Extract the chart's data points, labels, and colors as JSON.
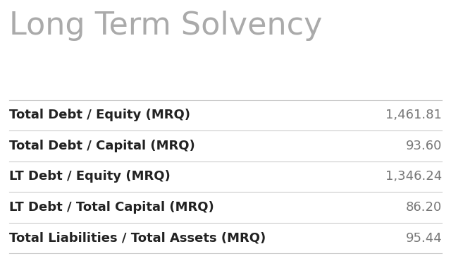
{
  "title": "Long Term Solvency",
  "title_color": "#aaaaaa",
  "title_fontsize": 32,
  "background_color": "#ffffff",
  "rows": [
    {
      "label": "Total Debt / Equity (MRQ)",
      "value": "1,461.81"
    },
    {
      "label": "Total Debt / Capital (MRQ)",
      "value": "93.60"
    },
    {
      "label": "LT Debt / Equity (MRQ)",
      "value": "1,346.24"
    },
    {
      "label": "LT Debt / Total Capital (MRQ)",
      "value": "86.20"
    },
    {
      "label": "Total Liabilities / Total Assets (MRQ)",
      "value": "95.44"
    }
  ],
  "label_color": "#222222",
  "value_color": "#777777",
  "label_fontsize": 13,
  "value_fontsize": 13,
  "divider_color": "#cccccc",
  "divider_linewidth": 0.8
}
